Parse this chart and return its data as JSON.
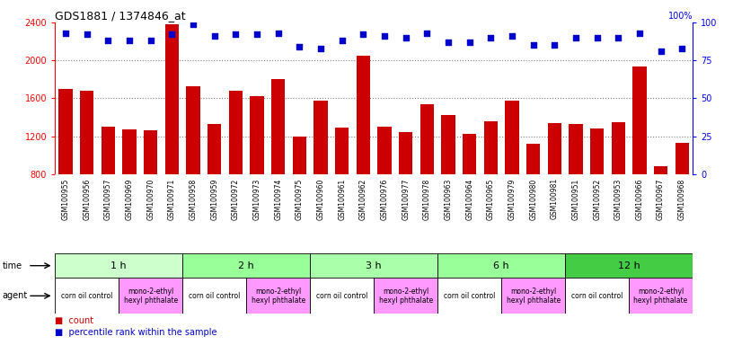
{
  "title": "GDS1881 / 1374846_at",
  "samples": [
    "GSM100955",
    "GSM100956",
    "GSM100957",
    "GSM100969",
    "GSM100970",
    "GSM100971",
    "GSM100958",
    "GSM100959",
    "GSM100972",
    "GSM100973",
    "GSM100974",
    "GSM100975",
    "GSM100960",
    "GSM100961",
    "GSM100962",
    "GSM100976",
    "GSM100977",
    "GSM100978",
    "GSM100963",
    "GSM100964",
    "GSM100965",
    "GSM100979",
    "GSM100980",
    "GSM100981",
    "GSM100951",
    "GSM100952",
    "GSM100953",
    "GSM100966",
    "GSM100967",
    "GSM100968"
  ],
  "counts": [
    1700,
    1680,
    1300,
    1270,
    1260,
    2380,
    1730,
    1330,
    1680,
    1620,
    1800,
    1200,
    1580,
    1290,
    2050,
    1300,
    1240,
    1540,
    1420,
    1230,
    1360,
    1580,
    1120,
    1340,
    1330,
    1280,
    1350,
    1940,
    880,
    1130
  ],
  "percentiles": [
    93,
    92,
    88,
    88,
    88,
    92,
    99,
    91,
    92,
    92,
    93,
    84,
    83,
    88,
    92,
    91,
    90,
    93,
    87,
    87,
    90,
    91,
    85,
    85,
    90,
    90,
    90,
    93,
    81,
    83
  ],
  "bar_color": "#cc0000",
  "dot_color": "#0000cc",
  "ylim_left": [
    800,
    2400
  ],
  "ylim_right": [
    0,
    100
  ],
  "yticks_left": [
    800,
    1200,
    1600,
    2000,
    2400
  ],
  "yticks_right": [
    0,
    25,
    50,
    75,
    100
  ],
  "grid_dotted_values": [
    1200,
    1600,
    2000
  ],
  "time_groups": [
    {
      "label": "1 h",
      "start": 0,
      "end": 6,
      "color": "#ccffcc"
    },
    {
      "label": "2 h",
      "start": 6,
      "end": 12,
      "color": "#99ff99"
    },
    {
      "label": "3 h",
      "start": 12,
      "end": 18,
      "color": "#aaffaa"
    },
    {
      "label": "6 h",
      "start": 18,
      "end": 24,
      "color": "#99ff99"
    },
    {
      "label": "12 h",
      "start": 24,
      "end": 30,
      "color": "#44cc44"
    }
  ],
  "agent_groups": [
    {
      "label": "corn oil control",
      "start": 0,
      "end": 3,
      "color": "#ffffff"
    },
    {
      "label": "mono-2-ethyl\nhexyl phthalate",
      "start": 3,
      "end": 6,
      "color": "#ff99ff"
    },
    {
      "label": "corn oil control",
      "start": 6,
      "end": 9,
      "color": "#ffffff"
    },
    {
      "label": "mono-2-ethyl\nhexyl phthalate",
      "start": 9,
      "end": 12,
      "color": "#ff99ff"
    },
    {
      "label": "corn oil control",
      "start": 12,
      "end": 15,
      "color": "#ffffff"
    },
    {
      "label": "mono-2-ethyl\nhexyl phthalate",
      "start": 15,
      "end": 18,
      "color": "#ff99ff"
    },
    {
      "label": "corn oil control",
      "start": 18,
      "end": 21,
      "color": "#ffffff"
    },
    {
      "label": "mono-2-ethyl\nhexyl phthalate",
      "start": 21,
      "end": 24,
      "color": "#ff99ff"
    },
    {
      "label": "corn oil control",
      "start": 24,
      "end": 27,
      "color": "#ffffff"
    },
    {
      "label": "mono-2-ethyl\nhexyl phthalate",
      "start": 27,
      "end": 30,
      "color": "#ff99ff"
    }
  ],
  "legend_count_color": "#cc0000",
  "legend_dot_color": "#0000cc",
  "bg_color": "#ffffff",
  "xticklabel_bg": "#dddddd"
}
